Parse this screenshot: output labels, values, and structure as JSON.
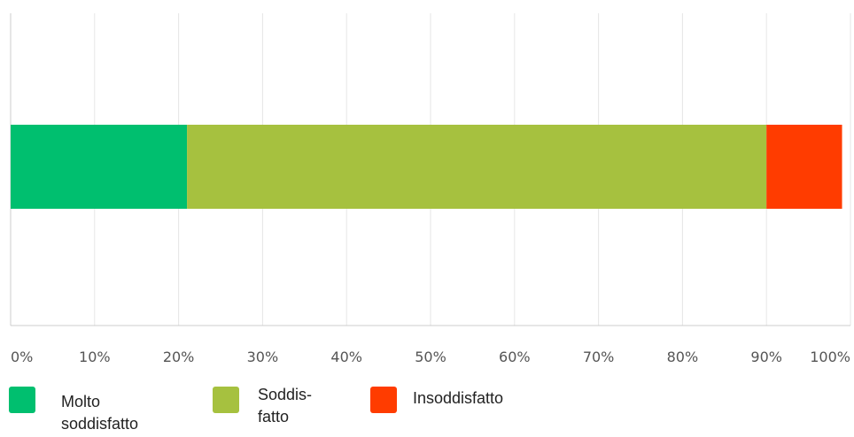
{
  "chart_data": {
    "type": "bar",
    "orientation": "horizontal",
    "stacked": true,
    "categories": [
      ""
    ],
    "series": [
      {
        "name": "Molto\nsoddisfatto",
        "values": [
          21
        ],
        "color": "#00BF6F"
      },
      {
        "name": "Soddis-\nfatto",
        "values": [
          69
        ],
        "color": "#A6C13F"
      },
      {
        "name": "Insoddisfatto",
        "values": [
          9
        ],
        "color": "#FF3C00"
      }
    ],
    "xlim": [
      0,
      100
    ],
    "x_ticks": [
      "0%",
      "10%",
      "20%",
      "30%",
      "40%",
      "50%",
      "60%",
      "70%",
      "80%",
      "90%",
      "100%"
    ],
    "grid": true,
    "legend_position": "bottom",
    "title": "",
    "xlabel": "",
    "ylabel": ""
  }
}
